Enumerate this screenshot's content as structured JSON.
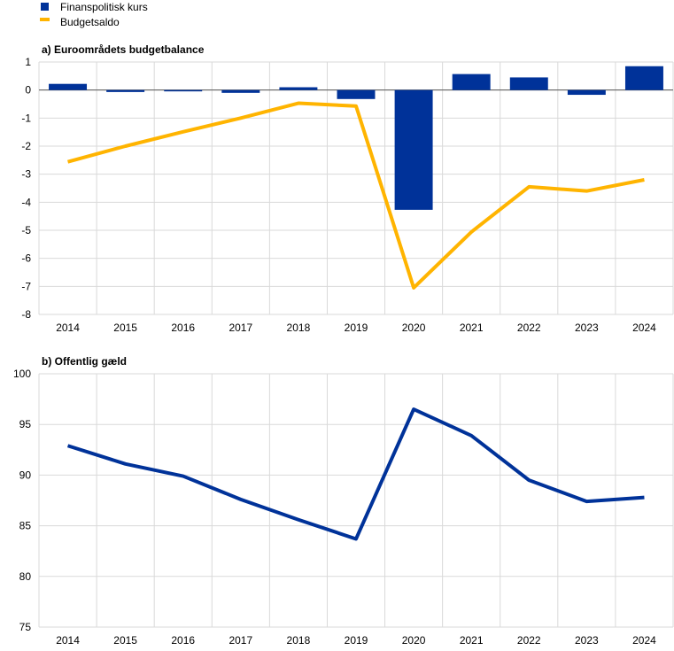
{
  "legend": [
    {
      "label": "Finanspolitisk kurs",
      "color": "#003299",
      "shape": "square"
    },
    {
      "label": "Budgetsaldo",
      "color": "#FFB400",
      "shape": "line"
    }
  ],
  "chart_data": [
    {
      "type": "bar+line",
      "title": "a) Euroområdets budgetbalance",
      "categories": [
        "2014",
        "2015",
        "2016",
        "2017",
        "2018",
        "2019",
        "2020",
        "2021",
        "2022",
        "2023",
        "2024"
      ],
      "ylim": [
        -8,
        1
      ],
      "yticks": [
        1,
        0,
        -1,
        -2,
        -3,
        -4,
        -5,
        -6,
        -7,
        -8
      ],
      "grid": true,
      "legend_position": "top-left",
      "series": [
        {
          "name": "Finanspolitisk kurs",
          "type": "bar",
          "color": "#003299",
          "values": [
            0.22,
            -0.07,
            -0.03,
            -0.1,
            0.1,
            -0.32,
            -4.27,
            0.57,
            0.45,
            -0.17,
            0.85
          ]
        },
        {
          "name": "Budgetsaldo",
          "type": "line",
          "color": "#FFB400",
          "values": [
            -2.56,
            -2.0,
            -1.49,
            -1.0,
            -0.47,
            -0.57,
            -7.05,
            -5.06,
            -3.45,
            -3.6,
            -3.2
          ]
        }
      ]
    },
    {
      "type": "line",
      "title": "b) Offentlig gæld",
      "categories": [
        "2014",
        "2015",
        "2016",
        "2017",
        "2018",
        "2019",
        "2020",
        "2021",
        "2022",
        "2023",
        "2024"
      ],
      "ylim": [
        75,
        100
      ],
      "yticks": [
        100,
        95,
        90,
        85,
        80,
        75
      ],
      "grid": true,
      "series": [
        {
          "type": "line",
          "color": "#003299",
          "values": [
            92.9,
            91.1,
            89.9,
            87.6,
            85.6,
            83.7,
            96.5,
            93.9,
            89.5,
            87.4,
            87.8
          ]
        }
      ]
    }
  ]
}
